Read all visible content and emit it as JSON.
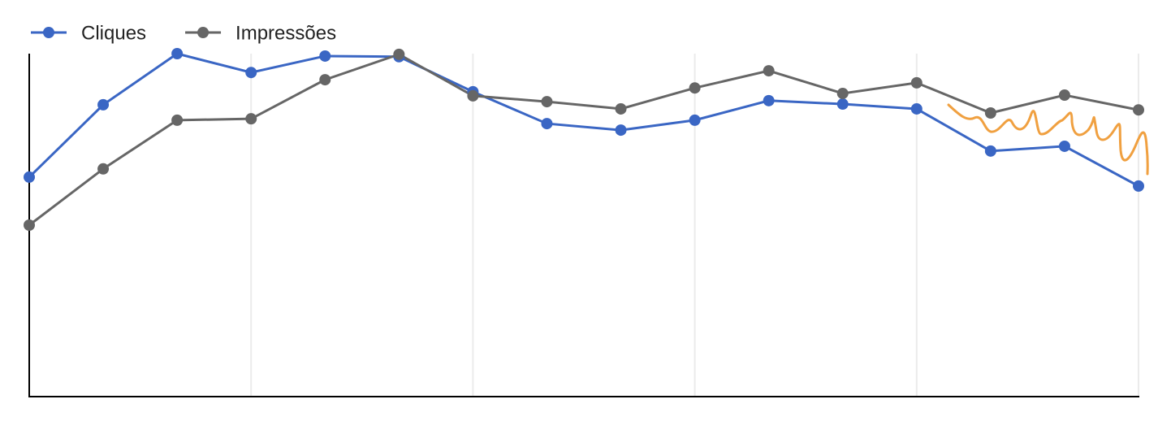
{
  "chart_data": {
    "type": "line",
    "categories": [
      null,
      null,
      null,
      null,
      null,
      null,
      null,
      null,
      null,
      null,
      null,
      null,
      null,
      null,
      null,
      null
    ],
    "series": [
      {
        "name": "Cliques",
        "color": "#3a66c4",
        "values": [
          64.0,
          85.1,
          100,
          94.5,
          99.3,
          99.1,
          88.9,
          79.6,
          77.7,
          80.6,
          86.3,
          85.3,
          83.9,
          71.6,
          73.0,
          61.4
        ]
      },
      {
        "name": "Impressões",
        "color": "#666666",
        "values": [
          50.0,
          66.4,
          80.6,
          81.0,
          92.4,
          99.8,
          87.7,
          86.0,
          83.9,
          90.0,
          95.0,
          88.4,
          91.5,
          82.7,
          87.9,
          83.6
        ]
      }
    ],
    "ylim": [
      0,
      100
    ],
    "legend": "top-left"
  }
}
